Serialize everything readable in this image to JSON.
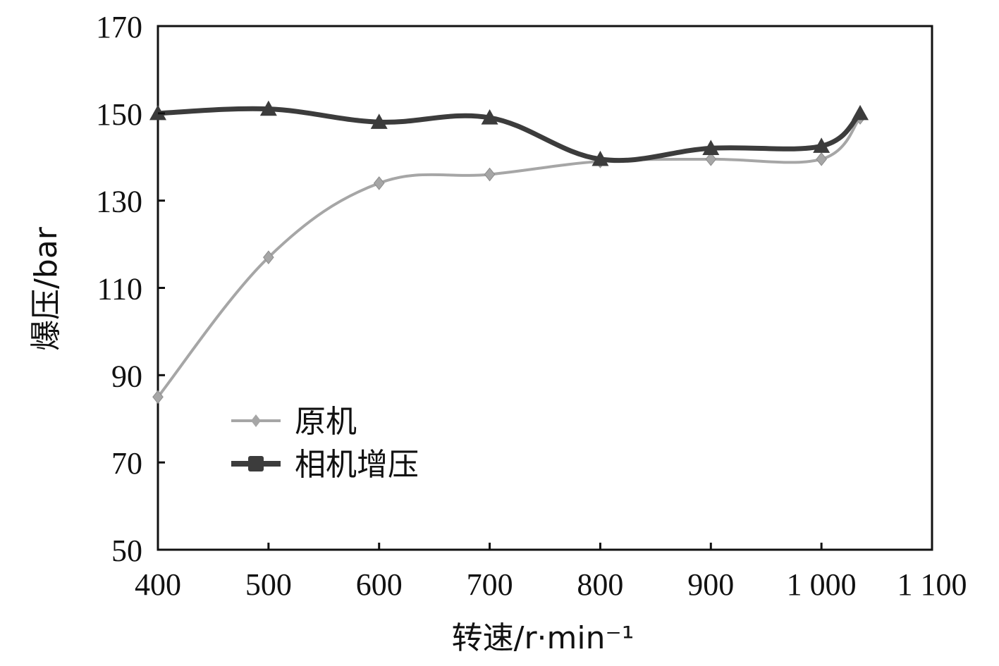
{
  "chart_data": {
    "type": "line",
    "xlabel": "转速/r·min⁻¹",
    "ylabel": "爆压/bar",
    "xlim": [
      400,
      1100
    ],
    "ylim": [
      50,
      170
    ],
    "x_ticks": [
      400,
      500,
      600,
      700,
      800,
      900,
      1000,
      1100
    ],
    "x_tick_labels": [
      "400",
      "500",
      "600",
      "700",
      "800",
      "900",
      "1 000",
      "1 100"
    ],
    "y_ticks": [
      50,
      70,
      90,
      110,
      130,
      150,
      170
    ],
    "y_tick_labels": [
      "50",
      "70",
      "90",
      "110",
      "130",
      "150",
      "170"
    ],
    "grid": false,
    "legend_position": "lower-left",
    "series": [
      {
        "name": "原机",
        "color": "#a6a6a6",
        "marker": "diamond",
        "x": [
          400,
          500,
          600,
          700,
          800,
          900,
          1000,
          1035
        ],
        "values": [
          85,
          117,
          134,
          136,
          139,
          139.5,
          139.5,
          149
        ]
      },
      {
        "name": "相机增压",
        "color": "#3c3c3c",
        "marker": "triangle",
        "x": [
          400,
          500,
          600,
          700,
          800,
          900,
          1000,
          1035
        ],
        "values": [
          150,
          151,
          148,
          149,
          139.5,
          142,
          142.5,
          150
        ]
      }
    ]
  }
}
